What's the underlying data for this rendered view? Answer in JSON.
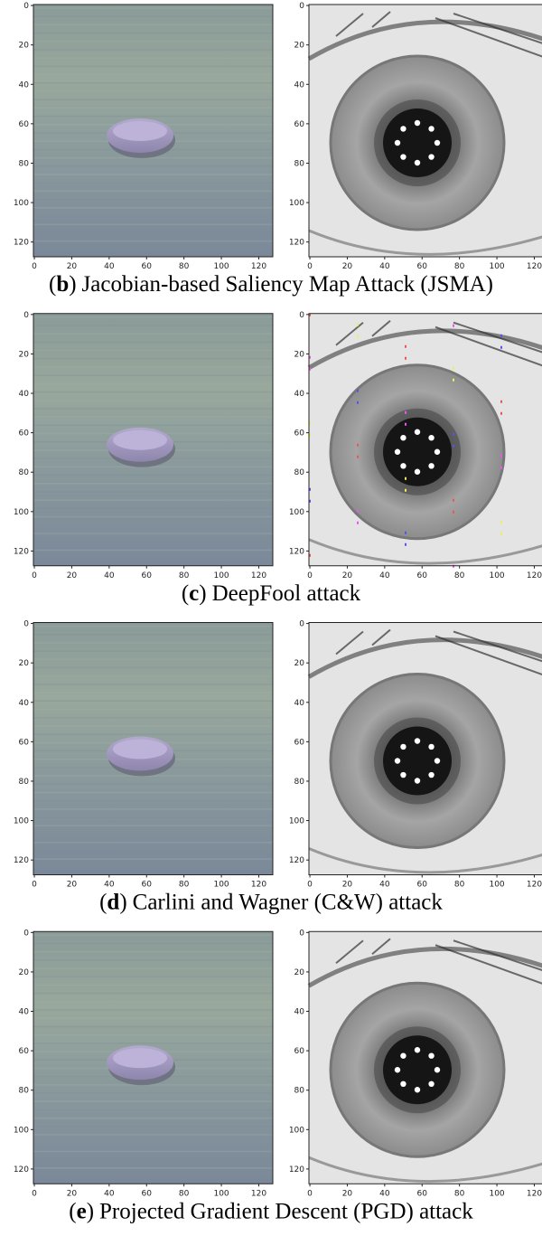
{
  "axes": {
    "ticks": [
      0,
      20,
      40,
      60,
      80,
      100,
      120
    ]
  },
  "panels": [
    {
      "open": "(",
      "label": "b",
      "close": ")",
      "text": "Jacobian-based Saliency Map Attack (JSMA)"
    },
    {
      "open": "(",
      "label": "c",
      "close": ")",
      "text": "DeepFool attack"
    },
    {
      "open": "(",
      "label": "d",
      "close": ")",
      "text": "Carlini and Wagner (C&W) attack"
    },
    {
      "open": "(",
      "label": "e",
      "close": ")",
      "text": "Projected Gradient Descent (PGD) attack"
    }
  ]
}
